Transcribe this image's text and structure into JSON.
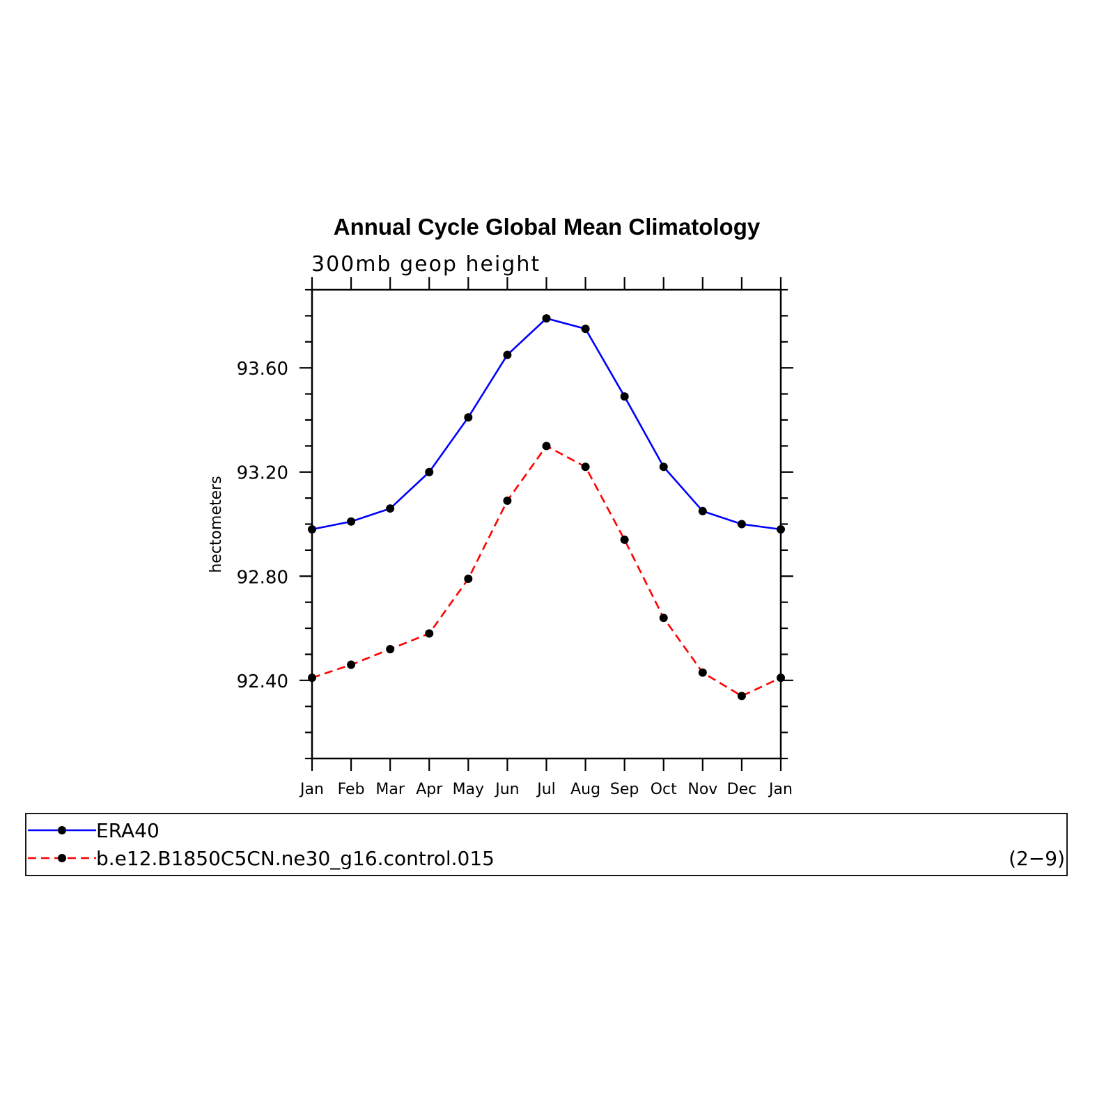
{
  "chart_data": {
    "type": "line",
    "title": "Annual Cycle Global Mean Climatology",
    "subtitle": "300mb geop height",
    "xlabel": "",
    "ylabel": "hectometers",
    "categories": [
      "Jan",
      "Feb",
      "Mar",
      "Apr",
      "May",
      "Jun",
      "Jul",
      "Aug",
      "Sep",
      "Oct",
      "Nov",
      "Dec",
      "Jan"
    ],
    "ylim": [
      92.1,
      93.9
    ],
    "yticks": [
      92.4,
      92.8,
      93.2,
      93.6
    ],
    "ytick_labels": [
      "92.40",
      "92.80",
      "93.20",
      "93.60"
    ],
    "yminor_step": 0.1,
    "series": [
      {
        "name": "ERA40",
        "color": "#0000ff",
        "dash": "solid",
        "marker": "filled-circle",
        "values": [
          92.98,
          93.01,
          93.06,
          93.2,
          93.41,
          93.65,
          93.79,
          93.75,
          93.49,
          93.22,
          93.05,
          93.0,
          92.98
        ]
      },
      {
        "name": "b.e12.B1850C5CN.ne30_g16.control.015",
        "color": "#ff0000",
        "dash": "dashed",
        "marker": "filled-circle",
        "values": [
          92.41,
          92.46,
          92.52,
          92.58,
          92.79,
          93.09,
          93.3,
          93.22,
          92.94,
          92.64,
          92.43,
          92.34,
          92.41
        ]
      }
    ],
    "legend_position": "bottom",
    "legend_note": "(2−9)"
  }
}
